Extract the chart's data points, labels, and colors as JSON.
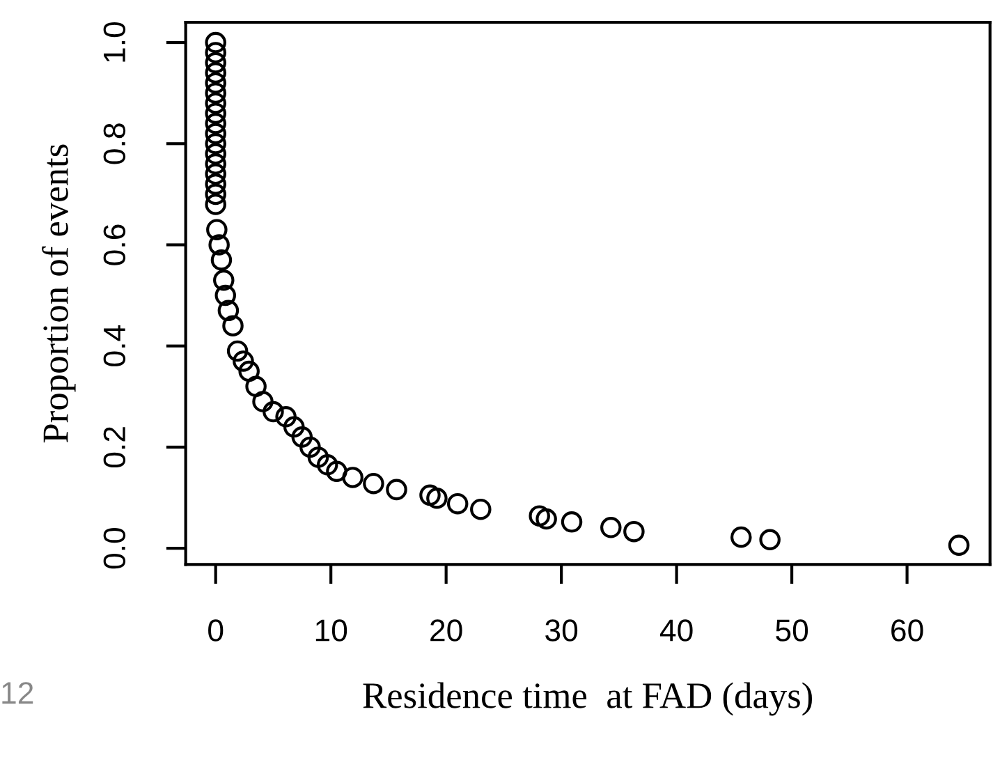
{
  "chart_data": {
    "type": "scatter",
    "xlabel": "Residence time  at FAD (days)",
    "ylabel": "Proportion of events",
    "annotations": [
      "12"
    ],
    "series": [
      {
        "color": "#000000",
        "x": [
          0,
          0,
          0,
          0,
          0,
          0,
          0,
          0,
          0,
          0,
          0,
          0,
          0,
          0,
          0,
          0,
          0,
          0.1,
          0.3,
          0.5,
          0.7,
          0.85,
          1.1,
          1.5,
          1.9,
          2.4,
          2.9,
          3.5,
          4.1,
          5.0,
          6.1,
          6.8,
          7.5,
          8.2,
          8.9,
          9.7,
          10.5,
          11.9,
          13.7,
          15.7,
          18.6,
          19.2,
          21.0,
          23.0,
          28.1,
          28.7,
          30.9,
          34.3,
          36.3,
          45.6,
          48.1,
          64.5
        ],
        "values": [
          1.0,
          0.98,
          0.96,
          0.94,
          0.92,
          0.9,
          0.88,
          0.86,
          0.84,
          0.82,
          0.8,
          0.78,
          0.76,
          0.74,
          0.72,
          0.7,
          0.68,
          0.63,
          0.6,
          0.57,
          0.53,
          0.5,
          0.47,
          0.44,
          0.39,
          0.37,
          0.35,
          0.32,
          0.29,
          0.27,
          0.26,
          0.24,
          0.22,
          0.2,
          0.18,
          0.165,
          0.152,
          0.14,
          0.128,
          0.116,
          0.105,
          0.099,
          0.088,
          0.077,
          0.064,
          0.058,
          0.052,
          0.041,
          0.033,
          0.022,
          0.017,
          0.006
        ]
      }
    ],
    "marker": "circle",
    "xlim": [
      -2.6,
      67.2
    ],
    "ylim": [
      -0.032,
      1.04
    ],
    "xticks": [
      0,
      10,
      20,
      30,
      40,
      50,
      60
    ],
    "yticks": [
      {
        "value": 0,
        "label": "0.0"
      },
      {
        "value": 0.2,
        "label": "0.2"
      },
      {
        "value": 0.4,
        "label": "0.4"
      },
      {
        "value": 0.6,
        "label": "0.6"
      },
      {
        "value": 0.8,
        "label": "0.8"
      },
      {
        "value": 1,
        "label": "1.0"
      }
    ],
    "grid": false,
    "legend": false
  }
}
